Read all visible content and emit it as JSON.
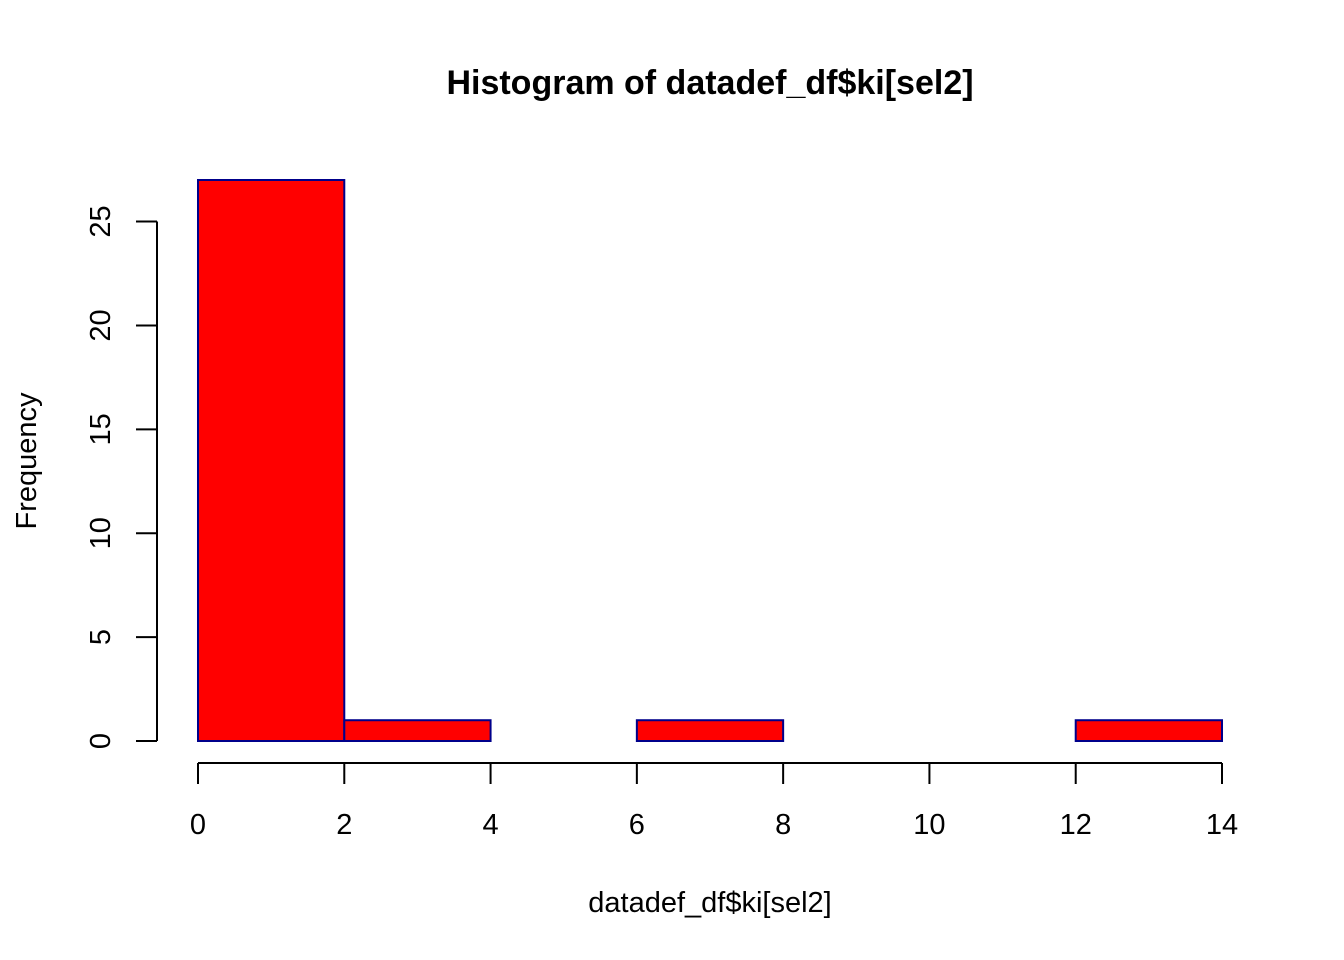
{
  "chart_data": {
    "type": "bar",
    "title": "Histogram of datadef_df$ki[sel2]",
    "xlabel": "datadef_df$ki[sel2]",
    "ylabel": "Frequency",
    "bins": [
      {
        "from": 0,
        "to": 2,
        "count": 27
      },
      {
        "from": 2,
        "to": 4,
        "count": 1
      },
      {
        "from": 4,
        "to": 6,
        "count": 0
      },
      {
        "from": 6,
        "to": 8,
        "count": 1
      },
      {
        "from": 8,
        "to": 10,
        "count": 0
      },
      {
        "from": 10,
        "to": 12,
        "count": 0
      },
      {
        "from": 12,
        "to": 14,
        "count": 1
      }
    ],
    "xlim": [
      0,
      14
    ],
    "ylim": [
      0,
      27
    ],
    "x_ticks": [
      0,
      2,
      4,
      6,
      8,
      10,
      12,
      14
    ],
    "y_ticks": [
      0,
      5,
      10,
      15,
      20,
      25
    ],
    "grid": false,
    "legend": "none",
    "colors": {
      "bar_fill": "#ff0000",
      "bar_border": "#00008b",
      "axis": "#000000"
    }
  }
}
